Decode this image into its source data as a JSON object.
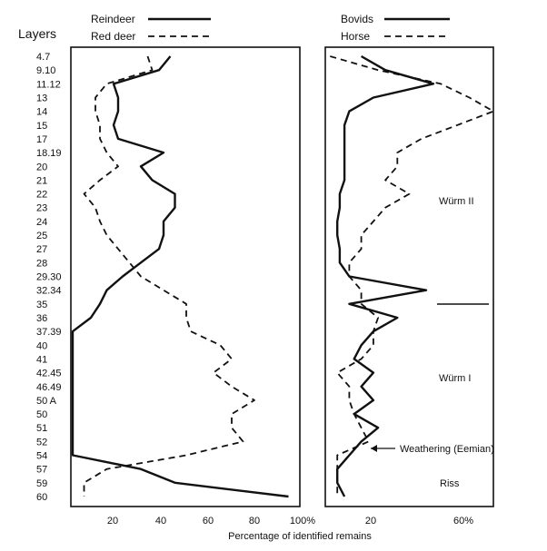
{
  "chart_data": [
    {
      "type": "line",
      "title": "",
      "ylabel": "Layers",
      "xlabel": "Percentage of identified remains",
      "categories": [
        "4.7",
        "9.10",
        "11.12",
        "13",
        "14",
        "15",
        "17",
        "18.19",
        "20",
        "21",
        "22",
        "23",
        "24",
        "25",
        "27",
        "28",
        "29.30",
        "32.34",
        "35",
        "36",
        "37.39",
        "40",
        "41",
        "42.45",
        "46.49",
        "50 A",
        "50",
        "51",
        "52",
        "54",
        "57",
        "59",
        "60"
      ],
      "xlim": [
        0,
        100
      ],
      "xticks": [
        "20",
        "40",
        "60",
        "80",
        "100%"
      ],
      "legend_placement": "top-center",
      "series": [
        {
          "name": "Reindeer",
          "style": "solid",
          "values": [
            43,
            38,
            18,
            20,
            20,
            18,
            20,
            40,
            30,
            35,
            45,
            45,
            40,
            40,
            38,
            30,
            22,
            15,
            12,
            8,
            0,
            0,
            0,
            0,
            0,
            0,
            0,
            0,
            0,
            0,
            30,
            45,
            95
          ]
        },
        {
          "name": "Red deer",
          "style": "dashed",
          "values": [
            33,
            35,
            15,
            10,
            10,
            12,
            12,
            15,
            20,
            12,
            5,
            10,
            12,
            15,
            20,
            25,
            30,
            40,
            50,
            50,
            52,
            65,
            70,
            62,
            70,
            80,
            70,
            70,
            75,
            50,
            15,
            5,
            5
          ]
        }
      ]
    },
    {
      "type": "line",
      "xlabel": "",
      "categories": [
        "4.7",
        "9.10",
        "11.12",
        "13",
        "14",
        "15",
        "17",
        "18.19",
        "20",
        "21",
        "22",
        "23",
        "24",
        "25",
        "27",
        "28",
        "29.30",
        "32.34",
        "35",
        "36",
        "37.39",
        "40",
        "41",
        "42.45",
        "46.49",
        "50 A",
        "50",
        "51",
        "52",
        "54",
        "57",
        "59",
        "60"
      ],
      "xlim": [
        0,
        70
      ],
      "xticks": [
        "20",
        "60%"
      ],
      "legend_placement": "top-center",
      "series": [
        {
          "name": "Bovids",
          "style": "solid",
          "values": [
            15,
            25,
            45,
            20,
            10,
            8,
            8,
            8,
            8,
            8,
            6,
            6,
            5,
            5,
            6,
            6,
            10,
            42,
            10,
            30,
            20,
            15,
            12,
            20,
            15,
            20,
            12,
            22,
            15,
            10,
            5,
            5,
            8
          ]
        },
        {
          "name": "Horse",
          "style": "dashed",
          "values": [
            2,
            22,
            48,
            60,
            70,
            55,
            40,
            30,
            30,
            25,
            35,
            25,
            20,
            15,
            15,
            10,
            10,
            15,
            15,
            22,
            20,
            20,
            15,
            5,
            10,
            10,
            12,
            15,
            18,
            5,
            5,
            5,
            5
          ]
        }
      ],
      "annotations": [
        "Würm II",
        "Würm I",
        "Weathering (Eemian)",
        "Riss"
      ]
    }
  ]
}
